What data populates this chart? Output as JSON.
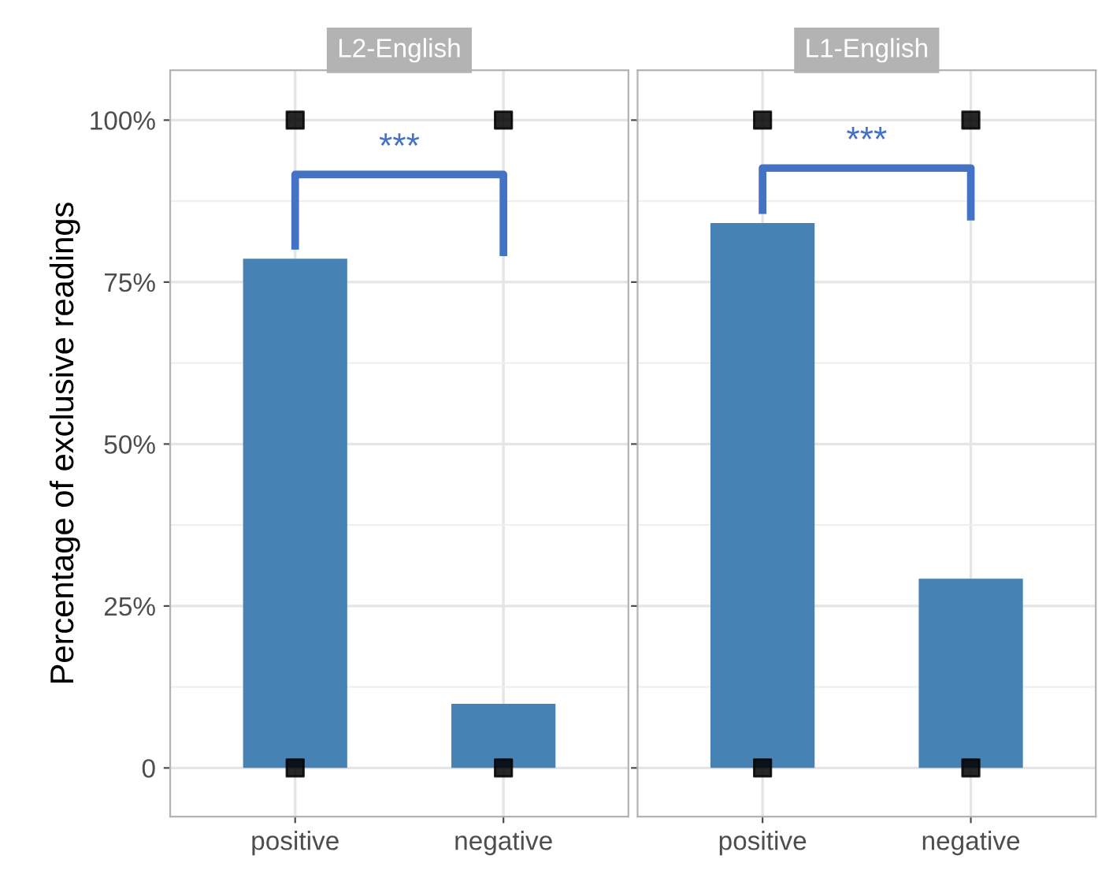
{
  "chart_data": [
    {
      "type": "bar",
      "title": "L2-English",
      "ylabel": "Percentage of exclusive readings",
      "categories": [
        "positive",
        "negative"
      ],
      "series": [
        {
          "color": "#4682b4",
          "values": [
            78.6,
            9.9
          ]
        },
        {
          "type": "scatter",
          "color": "#000000",
          "x": [
            "positive",
            "positive",
            "negative",
            "negative"
          ],
          "values": [
            100,
            0,
            100,
            0
          ]
        }
      ],
      "ylim": [
        -7.5,
        107.7
      ],
      "yticks": [
        {
          "value": 0,
          "label": "0"
        },
        {
          "value": 25,
          "label": "25%"
        },
        {
          "value": 50,
          "label": "50%"
        },
        {
          "value": 75,
          "label": "75%"
        },
        {
          "value": 100,
          "label": "100%"
        }
      ],
      "grid": true,
      "annotations": [
        "***"
      ]
    },
    {
      "type": "bar",
      "title": "L1-English",
      "categories": [
        "positive",
        "negative"
      ],
      "series": [
        {
          "color": "#4682b4",
          "values": [
            84.1,
            29.2
          ]
        },
        {
          "type": "scatter",
          "color": "#000000",
          "x": [
            "positive",
            "positive",
            "negative",
            "negative"
          ],
          "values": [
            100,
            0,
            100,
            0
          ]
        }
      ],
      "ylim": [
        -7.5,
        107.7
      ],
      "yticks": [
        0,
        25,
        50,
        75,
        100
      ],
      "grid": true,
      "tick_labels": "x",
      "annotations": [
        "***"
      ]
    }
  ]
}
